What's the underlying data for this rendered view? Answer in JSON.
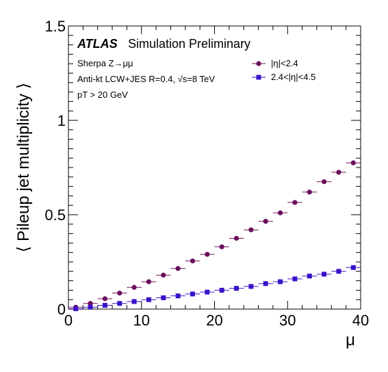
{
  "chart_data": {
    "type": "scatter",
    "ylabel": "⟨ Pileup jet multiplicity ⟩",
    "xlabel": "μ",
    "xlim": [
      0,
      40
    ],
    "ylim": [
      0,
      1.5
    ],
    "x_ticks": [
      "0",
      "10",
      "20",
      "30",
      "40"
    ],
    "y_ticks": [
      "0",
      "0.5",
      "1",
      "1.5"
    ],
    "grid": false,
    "legend_position": "top-right",
    "x": [
      1,
      3,
      5,
      7,
      9,
      11,
      13,
      15,
      17,
      19,
      21,
      23,
      25,
      27,
      29,
      31,
      33,
      35,
      37,
      39
    ],
    "series": [
      {
        "name": "|η|<2.4",
        "marker": "circle",
        "color": "#6b0f5c",
        "values": [
          0.01,
          0.03,
          0.055,
          0.085,
          0.115,
          0.145,
          0.18,
          0.215,
          0.255,
          0.29,
          0.33,
          0.375,
          0.42,
          0.465,
          0.51,
          0.565,
          0.62,
          0.675,
          0.725,
          0.775
        ]
      },
      {
        "name": "2.4<|η|<4.5",
        "marker": "square",
        "color": "#3a12c9",
        "values": [
          0.002,
          0.01,
          0.02,
          0.03,
          0.04,
          0.05,
          0.06,
          0.07,
          0.08,
          0.09,
          0.1,
          0.11,
          0.12,
          0.135,
          0.145,
          0.16,
          0.175,
          0.185,
          0.2,
          0.22
        ]
      }
    ]
  },
  "annotations": {
    "atlas": "ATLAS",
    "atlas_sub": "Simulation Preliminary",
    "line1": "Sherpa Z→μμ",
    "line2": "Anti-kt LCW+JES R=0.4, √s=8 TeV",
    "line3": "pT > 20 GeV"
  }
}
